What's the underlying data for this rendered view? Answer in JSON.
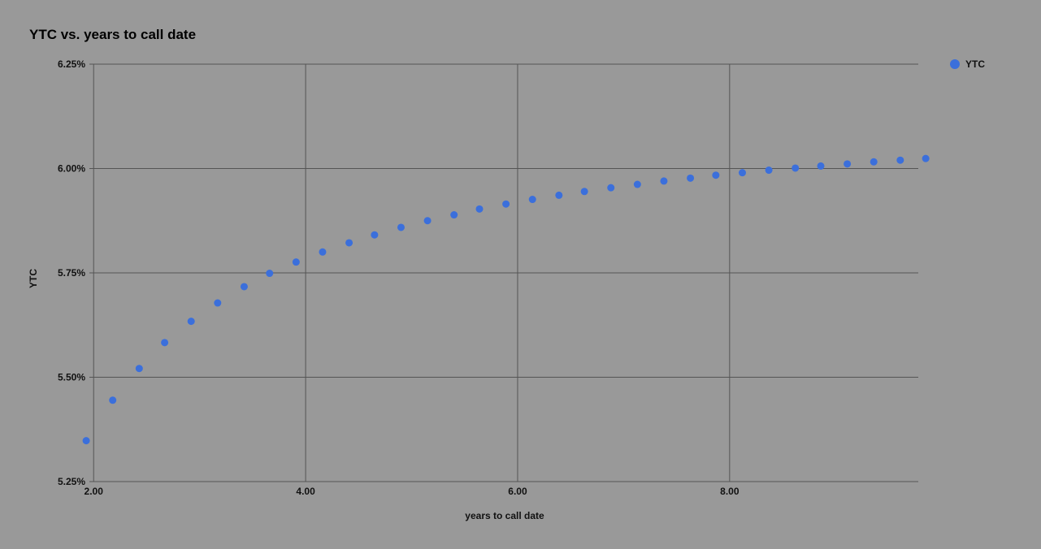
{
  "chart_data": {
    "type": "scatter",
    "title": "YTC vs. years to call date",
    "xlabel": "years to call date",
    "ylabel": "YTC",
    "xlim": [
      1.96,
      9.78
    ],
    "ylim": [
      5.25,
      6.25
    ],
    "x_ticks": [
      2.0,
      4.0,
      6.0,
      8.0
    ],
    "x_tick_labels": [
      "2.00",
      "4.00",
      "6.00",
      "8.00"
    ],
    "y_ticks": [
      5.25,
      5.5,
      5.75,
      6.0,
      6.25
    ],
    "y_tick_labels": [
      "5.25%",
      "5.50%",
      "5.75%",
      "6.00%",
      "6.25%"
    ],
    "grid": true,
    "legend_position": "top-right",
    "series": [
      {
        "name": "YTC",
        "color": "#3b6fdb",
        "x": [
          1.93,
          2.18,
          2.43,
          2.67,
          2.92,
          3.17,
          3.42,
          3.66,
          3.91,
          4.16,
          4.41,
          4.65,
          4.9,
          5.15,
          5.4,
          5.64,
          5.89,
          6.14,
          6.39,
          6.63,
          6.88,
          7.13,
          7.38,
          7.63,
          7.87,
          8.12,
          8.37,
          8.62,
          8.86,
          9.11,
          9.36,
          9.61,
          9.85
        ],
        "y": [
          5.348,
          5.445,
          5.521,
          5.583,
          5.634,
          5.678,
          5.717,
          5.749,
          5.776,
          5.8,
          5.822,
          5.841,
          5.859,
          5.875,
          5.889,
          5.903,
          5.915,
          5.926,
          5.936,
          5.945,
          5.954,
          5.962,
          5.97,
          5.977,
          5.984,
          5.99,
          5.996,
          6.001,
          6.006,
          6.011,
          6.016,
          6.02,
          6.024
        ]
      }
    ]
  }
}
